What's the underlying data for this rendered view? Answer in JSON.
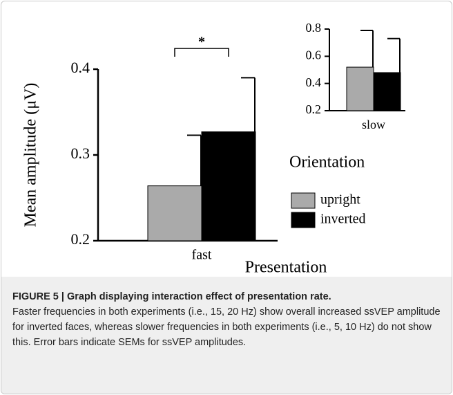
{
  "chart_data": [
    {
      "type": "bar",
      "categories": [
        "fast"
      ],
      "ylabel": "Mean amplitude (μV)",
      "xlabel": "Presentation",
      "annotation": "*",
      "legend_title": "Orientation",
      "series": [
        {
          "name": "upright",
          "color": "#aaaaaa",
          "values": [
            0.264
          ],
          "errors": [
            0.059
          ]
        },
        {
          "name": "inverted",
          "color": "#000000",
          "values": [
            0.327
          ],
          "errors": [
            0.063
          ]
        }
      ],
      "ylim": [
        0.2,
        0.4
      ],
      "yticks": [
        0.2,
        0.3,
        0.4
      ]
    },
    {
      "type": "bar",
      "categories": [
        "slow"
      ],
      "series": [
        {
          "name": "upright",
          "color": "#aaaaaa",
          "values": [
            0.52
          ],
          "errors": [
            0.27
          ]
        },
        {
          "name": "inverted",
          "color": "#000000",
          "values": [
            0.48
          ],
          "errors": [
            0.25
          ]
        }
      ],
      "ylim": [
        0.2,
        0.8
      ],
      "yticks": [
        0.2,
        0.4,
        0.6,
        0.8
      ]
    }
  ],
  "caption": {
    "title": "FIGURE 5 | Graph displaying interaction effect of presentation rate.",
    "text": "Faster frequencies in both experiments (i.e., 15, 20 Hz) show overall increased ssVEP amplitude for inverted faces, whereas slower frequencies in both experiments (i.e., 5, 10 Hz) do not show this. Error bars indicate SEMs for ssVEP amplitudes."
  }
}
